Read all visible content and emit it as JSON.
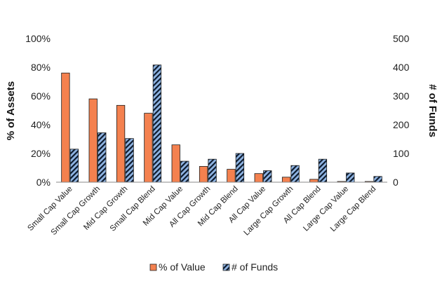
{
  "chart_data": {
    "type": "bar",
    "categories": [
      "Small Cap Value",
      "Small Cap Growth",
      "Mid Cap Growth",
      "Small Cap Blend",
      "Mid Cap Value",
      "All Cap Growth",
      "Mid Cap Blend",
      "All Cap Value",
      "Large Cap Growth",
      "All Cap Blend",
      "Large Cap Value",
      "Large Cap Blend"
    ],
    "series": [
      {
        "name": "% of Value",
        "axis": "left",
        "color": "#f4814f",
        "values": [
          0.76,
          0.58,
          0.535,
          0.48,
          0.26,
          0.11,
          0.09,
          0.06,
          0.035,
          0.02,
          0.005,
          0.005
        ]
      },
      {
        "name": "# of Funds",
        "axis": "right",
        "color": "#8fb4e3",
        "pattern": "diagonal-hatch-dark",
        "values": [
          115,
          172,
          152,
          408,
          73,
          80,
          100,
          40,
          58,
          80,
          32,
          20
        ]
      }
    ],
    "y_left": {
      "label": "% of Assets",
      "range": [
        0,
        1
      ],
      "ticks": [
        0,
        0.2,
        0.4,
        0.6,
        0.8,
        1.0
      ],
      "tick_labels": [
        "0%",
        "20%",
        "40%",
        "60%",
        "80%",
        "100%"
      ]
    },
    "y_right": {
      "label": "# of Funds",
      "range": [
        0,
        500
      ],
      "ticks": [
        0,
        100,
        200,
        300,
        400,
        500
      ],
      "tick_labels": [
        "0",
        "100",
        "200",
        "300",
        "400",
        "500"
      ]
    },
    "grid": false,
    "legend": "bottom"
  }
}
